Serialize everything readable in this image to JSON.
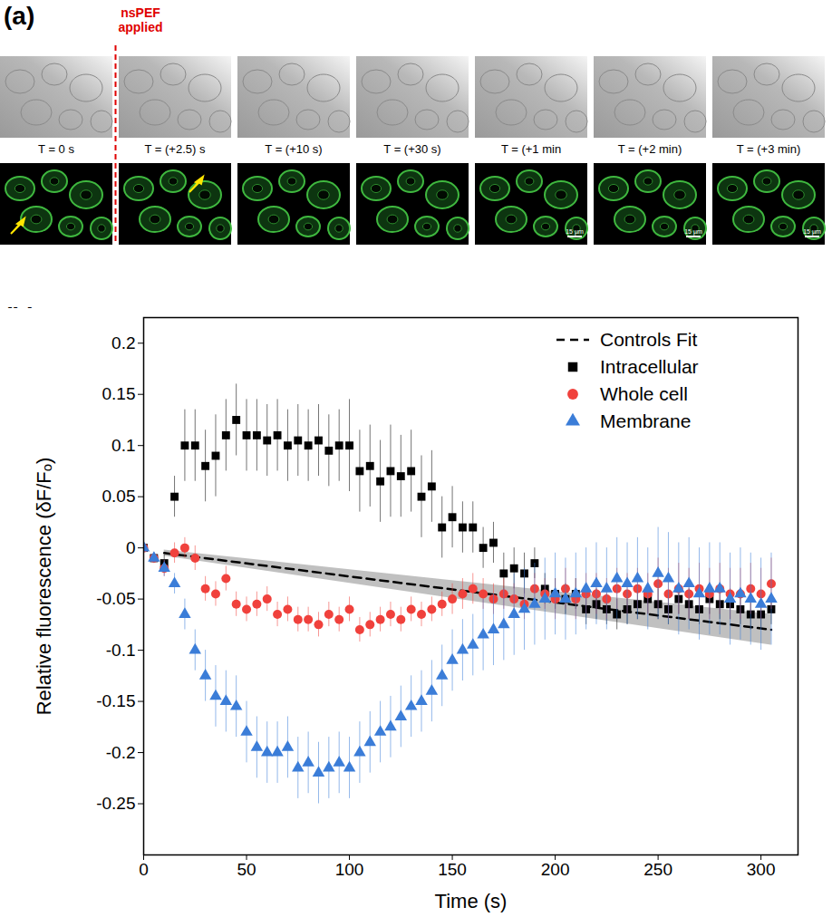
{
  "panel_a": {
    "label": "(a)",
    "annotation": "nsPEF applied",
    "times": [
      "T = 0 s",
      "T = (+2.5) s",
      "T = (+10 s)",
      "T = (+30 s)",
      "T = (+1 min",
      "T = (+2 min)",
      "T = (+3 min)"
    ],
    "scale_bar": "15 µm"
  },
  "panel_b_label": "(b)",
  "chart_data": {
    "type": "scatter",
    "x_label": "Time (s)",
    "y_label": "Relative fluorescence (δF/Fₒ)",
    "xlim": [
      0,
      318
    ],
    "xticks": [
      0,
      50,
      100,
      150,
      200,
      250,
      300
    ],
    "ylim": [
      -0.3,
      0.225
    ],
    "yticks": [
      -0.25,
      -0.2,
      -0.15,
      -0.1,
      -0.05,
      0,
      0.05,
      0.1,
      0.15,
      0.2
    ],
    "legend": "top-right",
    "x": [
      0,
      5,
      10,
      15,
      20,
      25,
      30,
      35,
      40,
      45,
      50,
      55,
      60,
      65,
      70,
      75,
      80,
      85,
      90,
      95,
      100,
      105,
      110,
      115,
      120,
      125,
      130,
      135,
      140,
      145,
      150,
      155,
      160,
      165,
      170,
      175,
      180,
      185,
      190,
      195,
      200,
      205,
      210,
      215,
      220,
      225,
      230,
      235,
      240,
      245,
      250,
      255,
      260,
      265,
      270,
      275,
      280,
      285,
      290,
      295,
      300,
      305
    ],
    "series": [
      {
        "name": "Controls Fit",
        "type": "line",
        "line_style": "dashed",
        "color": "#000000",
        "x": [
          10,
          305
        ],
        "values": [
          -0.005,
          -0.08
        ],
        "band": {
          "lower": [
            -0.008,
            -0.095
          ],
          "upper": [
            -0.002,
            -0.065
          ]
        }
      },
      {
        "name": "Intracellular",
        "type": "scatter",
        "marker": "square",
        "color": "#000000",
        "values": [
          0,
          -0.01,
          -0.015,
          0.05,
          0.1,
          0.1,
          0.08,
          0.09,
          0.11,
          0.125,
          0.11,
          0.11,
          0.105,
          0.11,
          0.1,
          0.105,
          0.1,
          0.105,
          0.095,
          0.1,
          0.1,
          0.075,
          0.08,
          0.065,
          0.075,
          0.07,
          0.075,
          0.05,
          0.06,
          0.02,
          0.03,
          0.02,
          0.02,
          0,
          0.005,
          -0.025,
          -0.02,
          -0.025,
          -0.015,
          -0.04,
          -0.045,
          -0.05,
          -0.045,
          -0.06,
          -0.055,
          -0.06,
          -0.065,
          -0.06,
          -0.055,
          -0.05,
          -0.055,
          -0.06,
          -0.05,
          -0.055,
          -0.06,
          -0.05,
          -0.055,
          -0.055,
          -0.06,
          -0.065,
          -0.065,
          -0.06
        ],
        "errors": [
          0,
          0.005,
          0.008,
          0.02,
          0.035,
          0.035,
          0.035,
          0.04,
          0.035,
          0.035,
          0.035,
          0.035,
          0.035,
          0.035,
          0.035,
          0.035,
          0.035,
          0.035,
          0.035,
          0.035,
          0.045,
          0.04,
          0.04,
          0.04,
          0.045,
          0.04,
          0.04,
          0.04,
          0.035,
          0.03,
          0.03,
          0.025,
          0.025,
          0.02,
          0.02,
          0.02,
          0.02,
          0.02,
          0.015,
          0.015,
          0.015,
          0.015,
          0.015,
          0.015,
          0.015,
          0.015,
          0.015,
          0.015,
          0.015,
          0.015,
          0.015,
          0.015,
          0.015,
          0.015,
          0.015,
          0.015,
          0.015,
          0.015,
          0.015,
          0.015,
          0.015,
          0.015
        ]
      },
      {
        "name": "Whole cell",
        "type": "scatter",
        "marker": "circle",
        "color": "#f0413c",
        "values": [
          0,
          -0.01,
          -0.02,
          -0.005,
          0,
          -0.01,
          -0.04,
          -0.045,
          -0.03,
          -0.055,
          -0.06,
          -0.055,
          -0.05,
          -0.065,
          -0.06,
          -0.07,
          -0.07,
          -0.075,
          -0.065,
          -0.07,
          -0.06,
          -0.08,
          -0.075,
          -0.07,
          -0.065,
          -0.07,
          -0.06,
          -0.065,
          -0.06,
          -0.055,
          -0.05,
          -0.045,
          -0.04,
          -0.045,
          -0.05,
          -0.045,
          -0.05,
          -0.055,
          -0.04,
          -0.045,
          -0.05,
          -0.04,
          -0.05,
          -0.045,
          -0.045,
          -0.05,
          -0.04,
          -0.045,
          -0.04,
          -0.045,
          -0.035,
          -0.045,
          -0.04,
          -0.045,
          -0.04,
          -0.045,
          -0.04,
          -0.045,
          -0.045,
          -0.04,
          -0.045,
          -0.035
        ],
        "errors": [
          0,
          0.005,
          0.008,
          0.01,
          0.01,
          0.012,
          0.012,
          0.012,
          0.012,
          0.012,
          0.012,
          0.012,
          0.012,
          0.012,
          0.012,
          0.012,
          0.012,
          0.012,
          0.012,
          0.012,
          0.012,
          0.012,
          0.012,
          0.012,
          0.012,
          0.012,
          0.012,
          0.012,
          0.012,
          0.012,
          0.015,
          0.015,
          0.015,
          0.015,
          0.015,
          0.015,
          0.015,
          0.015,
          0.015,
          0.015,
          0.02,
          0.02,
          0.02,
          0.02,
          0.02,
          0.02,
          0.02,
          0.02,
          0.02,
          0.02,
          0.025,
          0.025,
          0.025,
          0.025,
          0.025,
          0.025,
          0.025,
          0.025,
          0.025,
          0.025,
          0.025,
          0.025
        ]
      },
      {
        "name": "Membrane",
        "type": "scatter",
        "marker": "triangle",
        "color": "#3b7dd8",
        "values": [
          0,
          -0.01,
          -0.02,
          -0.035,
          -0.065,
          -0.1,
          -0.125,
          -0.145,
          -0.15,
          -0.155,
          -0.18,
          -0.195,
          -0.2,
          -0.2,
          -0.195,
          -0.215,
          -0.21,
          -0.22,
          -0.215,
          -0.21,
          -0.215,
          -0.2,
          -0.19,
          -0.18,
          -0.175,
          -0.165,
          -0.155,
          -0.15,
          -0.14,
          -0.125,
          -0.11,
          -0.1,
          -0.095,
          -0.085,
          -0.08,
          -0.075,
          -0.065,
          -0.06,
          -0.055,
          -0.05,
          -0.045,
          -0.05,
          -0.045,
          -0.04,
          -0.035,
          -0.04,
          -0.03,
          -0.035,
          -0.03,
          -0.04,
          -0.025,
          -0.03,
          -0.04,
          -0.035,
          -0.045,
          -0.04,
          -0.04,
          -0.05,
          -0.045,
          -0.05,
          -0.055,
          -0.05
        ],
        "errors": [
          0,
          0.005,
          0.008,
          0.01,
          0.015,
          0.02,
          0.025,
          0.03,
          0.03,
          0.03,
          0.03,
          0.03,
          0.03,
          0.03,
          0.03,
          0.03,
          0.03,
          0.03,
          0.03,
          0.03,
          0.03,
          0.03,
          0.03,
          0.03,
          0.03,
          0.03,
          0.03,
          0.03,
          0.03,
          0.03,
          0.03,
          0.03,
          0.03,
          0.035,
          0.035,
          0.035,
          0.04,
          0.04,
          0.04,
          0.04,
          0.04,
          0.04,
          0.04,
          0.04,
          0.04,
          0.04,
          0.04,
          0.04,
          0.04,
          0.04,
          0.045,
          0.045,
          0.045,
          0.045,
          0.045,
          0.045,
          0.045,
          0.045,
          0.045,
          0.045,
          0.045,
          0.045
        ]
      }
    ]
  }
}
